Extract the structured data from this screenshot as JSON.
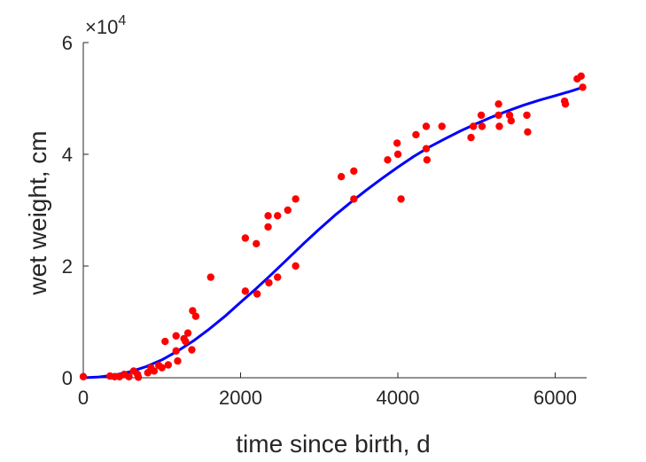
{
  "chart_data": {
    "type": "scatter",
    "title": "",
    "xlabel": "time since birth, d",
    "ylabel": "wet weight, cm",
    "xlim": [
      0,
      6400
    ],
    "ylim": [
      0,
      60000
    ],
    "x_ticks": [
      0,
      2000,
      4000,
      6000
    ],
    "y_ticks": [
      0,
      20000,
      40000,
      60000
    ],
    "x_tick_labels": [
      "0",
      "2000",
      "4000",
      "6000"
    ],
    "y_tick_labels": [
      "0",
      "2",
      "4",
      "6"
    ],
    "y_exponent_label": "×10",
    "y_exponent_power": "4",
    "grid": false,
    "series": [
      {
        "kind": "scatter",
        "color": "#ff0000",
        "points": [
          [
            0,
            200
          ],
          [
            340,
            300
          ],
          [
            400,
            200
          ],
          [
            460,
            200
          ],
          [
            520,
            600
          ],
          [
            580,
            200
          ],
          [
            640,
            1200
          ],
          [
            690,
            600
          ],
          [
            700,
            100
          ],
          [
            820,
            900
          ],
          [
            860,
            1800
          ],
          [
            900,
            1200
          ],
          [
            960,
            2200
          ],
          [
            1000,
            1800
          ],
          [
            1040,
            6500
          ],
          [
            1080,
            2300
          ],
          [
            1180,
            7500
          ],
          [
            1180,
            4800
          ],
          [
            1200,
            3000
          ],
          [
            1280,
            7000
          ],
          [
            1300,
            6500
          ],
          [
            1330,
            8000
          ],
          [
            1380,
            5000
          ],
          [
            1390,
            12000
          ],
          [
            1430,
            11000
          ],
          [
            1620,
            18000
          ],
          [
            2060,
            25000
          ],
          [
            2060,
            15500
          ],
          [
            2200,
            24000
          ],
          [
            2210,
            15000
          ],
          [
            2350,
            29000
          ],
          [
            2350,
            27000
          ],
          [
            2360,
            17000
          ],
          [
            2470,
            29000
          ],
          [
            2470,
            18000
          ],
          [
            2600,
            30000
          ],
          [
            2700,
            32000
          ],
          [
            2700,
            20000
          ],
          [
            3280,
            36000
          ],
          [
            3440,
            37000
          ],
          [
            3440,
            32000
          ],
          [
            3870,
            39000
          ],
          [
            3990,
            42000
          ],
          [
            4000,
            40000
          ],
          [
            4040,
            32000
          ],
          [
            4230,
            43500
          ],
          [
            4360,
            45000
          ],
          [
            4360,
            41000
          ],
          [
            4370,
            39000
          ],
          [
            4560,
            45000
          ],
          [
            4930,
            43000
          ],
          [
            4960,
            45000
          ],
          [
            5060,
            47000
          ],
          [
            5070,
            45000
          ],
          [
            5280,
            49000
          ],
          [
            5280,
            47000
          ],
          [
            5290,
            45000
          ],
          [
            5420,
            47000
          ],
          [
            5440,
            46000
          ],
          [
            5640,
            47000
          ],
          [
            5650,
            44000
          ],
          [
            6120,
            49500
          ],
          [
            6130,
            49000
          ],
          [
            6280,
            53500
          ],
          [
            6330,
            54000
          ],
          [
            6350,
            52000
          ]
        ]
      },
      {
        "kind": "line",
        "color": "#0000ff",
        "points": [
          [
            0,
            0
          ],
          [
            200,
            150
          ],
          [
            400,
            500
          ],
          [
            600,
            1100
          ],
          [
            800,
            2000
          ],
          [
            1000,
            3200
          ],
          [
            1200,
            4800
          ],
          [
            1400,
            6600
          ],
          [
            1600,
            8700
          ],
          [
            1800,
            11000
          ],
          [
            2000,
            13500
          ],
          [
            2200,
            16000
          ],
          [
            2400,
            18600
          ],
          [
            2600,
            21300
          ],
          [
            2800,
            24000
          ],
          [
            3000,
            26600
          ],
          [
            3200,
            29100
          ],
          [
            3400,
            31400
          ],
          [
            3600,
            33600
          ],
          [
            3800,
            35700
          ],
          [
            4000,
            37700
          ],
          [
            4200,
            39600
          ],
          [
            4400,
            41300
          ],
          [
            4600,
            42800
          ],
          [
            4800,
            44200
          ],
          [
            5000,
            45500
          ],
          [
            5200,
            46700
          ],
          [
            5400,
            47800
          ],
          [
            5600,
            48800
          ],
          [
            5800,
            49700
          ],
          [
            6000,
            50500
          ],
          [
            6200,
            51300
          ],
          [
            6350,
            52000
          ]
        ]
      }
    ]
  }
}
